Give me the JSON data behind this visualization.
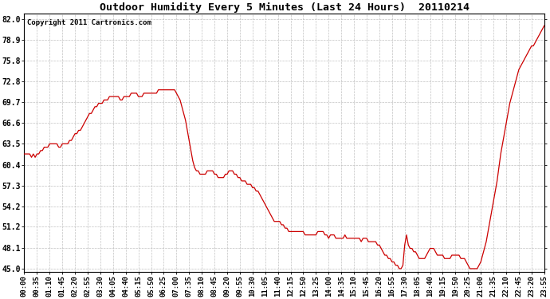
{
  "title": "Outdoor Humidity Every 5 Minutes (Last 24 Hours)  20110214",
  "copyright": "Copyright 2011 Cartronics.com",
  "line_color": "#cc0000",
  "background_color": "#ffffff",
  "grid_color": "#bbbbbb",
  "yticks": [
    45.0,
    48.1,
    51.2,
    54.2,
    57.3,
    60.4,
    63.5,
    66.6,
    69.7,
    72.8,
    75.8,
    78.9,
    82.0
  ],
  "ylim": [
    44.5,
    82.8
  ],
  "xtick_labels": [
    "00:00",
    "00:35",
    "01:10",
    "01:45",
    "02:20",
    "02:55",
    "03:30",
    "04:05",
    "04:40",
    "05:15",
    "05:50",
    "06:25",
    "07:00",
    "07:35",
    "08:10",
    "08:45",
    "09:20",
    "09:55",
    "10:30",
    "11:05",
    "11:40",
    "12:15",
    "12:50",
    "13:25",
    "14:00",
    "14:35",
    "15:10",
    "15:45",
    "16:20",
    "16:55",
    "17:30",
    "18:05",
    "18:40",
    "19:15",
    "19:50",
    "20:25",
    "21:00",
    "21:35",
    "22:10",
    "22:45",
    "23:20",
    "23:55"
  ],
  "humidity": [
    62.0,
    62.0,
    62.0,
    62.0,
    61.5,
    62.0,
    61.5,
    62.0,
    62.0,
    62.5,
    62.5,
    63.0,
    63.0,
    63.0,
    63.5,
    63.5,
    63.5,
    63.5,
    63.5,
    63.0,
    63.0,
    63.5,
    63.5,
    63.5,
    63.5,
    64.0,
    64.0,
    64.5,
    65.0,
    65.0,
    65.5,
    65.5,
    66.0,
    66.5,
    67.0,
    67.5,
    68.0,
    68.0,
    68.5,
    69.0,
    69.0,
    69.5,
    69.5,
    69.5,
    70.0,
    70.0,
    70.0,
    70.5,
    70.5,
    70.5,
    70.5,
    70.5,
    70.5,
    70.0,
    70.0,
    70.5,
    70.5,
    70.5,
    70.5,
    71.0,
    71.0,
    71.0,
    71.0,
    70.5,
    70.5,
    70.5,
    71.0,
    71.0,
    71.0,
    71.0,
    71.0,
    71.0,
    71.0,
    71.0,
    71.5,
    71.5,
    71.5,
    71.5,
    71.5,
    71.5,
    71.5,
    71.5,
    71.5,
    71.5,
    71.0,
    70.5,
    70.0,
    69.0,
    68.0,
    67.0,
    65.5,
    64.0,
    62.5,
    61.0,
    60.0,
    59.5,
    59.5,
    59.0,
    59.0,
    59.0,
    59.0,
    59.5,
    59.5,
    59.5,
    59.5,
    59.0,
    59.0,
    58.5,
    58.5,
    58.5,
    58.5,
    59.0,
    59.0,
    59.5,
    59.5,
    59.5,
    59.0,
    59.0,
    58.5,
    58.5,
    58.0,
    58.0,
    58.0,
    57.5,
    57.5,
    57.5,
    57.0,
    57.0,
    56.5,
    56.5,
    56.0,
    55.5,
    55.0,
    54.5,
    54.0,
    53.5,
    53.0,
    52.5,
    52.0,
    52.0,
    52.0,
    52.0,
    51.5,
    51.5,
    51.0,
    51.0,
    50.5,
    50.5,
    50.5,
    50.5,
    50.5,
    50.5,
    50.5,
    50.5,
    50.5,
    50.0,
    50.0,
    50.0,
    50.0,
    50.0,
    50.0,
    50.0,
    50.5,
    50.5,
    50.5,
    50.5,
    50.0,
    50.0,
    49.5,
    50.0,
    50.0,
    50.0,
    49.5,
    49.5,
    49.5,
    49.5,
    49.5,
    50.0,
    49.5,
    49.5,
    49.5,
    49.5,
    49.5,
    49.5,
    49.5,
    49.5,
    49.0,
    49.5,
    49.5,
    49.5,
    49.0,
    49.0,
    49.0,
    49.0,
    49.0,
    48.5,
    48.5,
    48.0,
    47.5,
    47.0,
    47.0,
    46.5,
    46.5,
    46.0,
    46.0,
    45.5,
    45.5,
    45.0,
    45.0,
    45.5,
    48.5,
    50.0,
    48.5,
    48.0,
    48.0,
    47.5,
    47.5,
    47.0,
    46.5,
    46.5,
    46.5,
    46.5,
    47.0,
    47.5,
    48.0,
    48.0,
    48.0,
    47.5,
    47.0,
    47.0,
    47.0,
    47.0,
    46.5,
    46.5,
    46.5,
    46.5,
    47.0,
    47.0,
    47.0,
    47.0,
    47.0,
    46.5,
    46.5,
    46.5,
    46.0,
    45.5,
    45.0,
    45.0,
    45.0,
    45.0,
    45.0,
    45.5,
    46.0,
    47.0,
    48.0,
    49.0,
    50.5,
    52.0,
    53.5,
    55.0,
    56.5,
    58.0,
    60.0,
    62.0,
    63.5,
    65.0,
    66.5,
    68.0,
    69.5,
    70.5,
    71.5,
    72.5,
    73.5,
    74.5,
    75.0,
    75.5,
    76.0,
    76.5,
    77.0,
    77.5,
    78.0,
    78.0,
    78.5,
    79.0,
    79.5,
    80.0,
    80.5,
    81.0,
    81.0,
    81.5,
    82.0,
    82.0,
    82.0,
    82.0,
    82.0,
    82.0,
    82.0,
    82.0
  ]
}
